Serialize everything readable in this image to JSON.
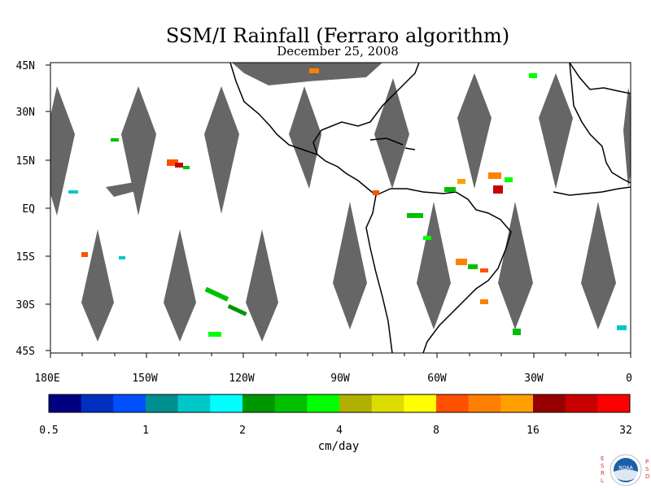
{
  "title": "SSM/I Rainfall (Ferraro algorithm)",
  "date": "December 25, 2008",
  "map": {
    "lat_labels": [
      "45N",
      "30N",
      "15N",
      "EQ",
      "15S",
      "30S",
      "45S"
    ],
    "lon_labels": [
      "180E",
      "150W",
      "120W",
      "90W",
      "60W",
      "30W",
      "0"
    ],
    "land_color": "#ffffff",
    "missing_data_color": "#666666",
    "coastline_color": "#000000"
  },
  "colorbar": {
    "unit_label": "cm/day",
    "tick_labels": [
      "0.5",
      "1",
      "2",
      "4",
      "8",
      "16",
      "32"
    ],
    "colors": [
      "#000080",
      "#0030c0",
      "#0050ff",
      "#009090",
      "#00c8c8",
      "#00ffff",
      "#009600",
      "#00c000",
      "#00ff00",
      "#b0b000",
      "#dcdc00",
      "#ffff00",
      "#ff5000",
      "#ff8000",
      "#ffa000",
      "#960000",
      "#c80000",
      "#ff0000"
    ]
  },
  "logo": {
    "left_letters": [
      "E",
      "S",
      "R",
      "L"
    ],
    "right_letters": [
      "P",
      "S",
      "D"
    ],
    "badge_text": "NOAA",
    "accent_color": "#e03030",
    "badge_color": "#1a5fa8"
  }
}
